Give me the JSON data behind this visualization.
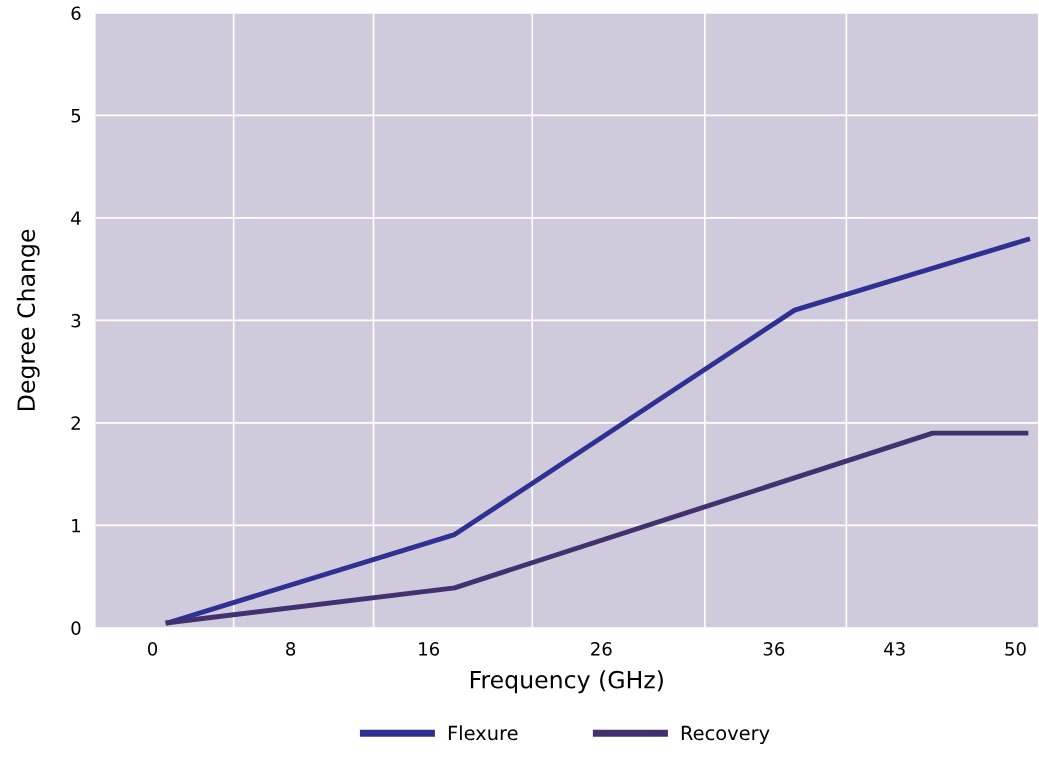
{
  "chart_data": {
    "type": "line",
    "xlabel": "Frequency (GHz)",
    "ylabel": "Degree Change",
    "xlim": [
      -3.3,
      51.3
    ],
    "xticks": [
      0,
      {
        "value": 4.7,
        "label": null
      },
      8,
      {
        "value": 12.8,
        "label": null
      },
      16,
      {
        "value": 22,
        "label": null
      },
      26,
      {
        "value": 32,
        "label": null
      },
      36,
      {
        "value": 40.2,
        "label": null
      },
      43,
      50
    ],
    "ylim": [
      0,
      6
    ],
    "yticks": [
      0,
      1,
      2,
      3,
      4,
      5,
      6
    ],
    "grid": true,
    "legend": "bottom",
    "marker": "none",
    "line_style": "solid",
    "series": [
      {
        "name": "Flexure",
        "color": "#2e3192",
        "x": [
          0.9,
          17.5,
          37.2,
          50.7
        ],
        "values": [
          0.05,
          0.91,
          3.1,
          3.79
        ]
      },
      {
        "name": "Recovery",
        "color": "#43306f",
        "x": [
          0.9,
          17.5,
          45.2,
          50.6
        ],
        "values": [
          0.05,
          0.39,
          1.9,
          1.9
        ]
      }
    ]
  }
}
